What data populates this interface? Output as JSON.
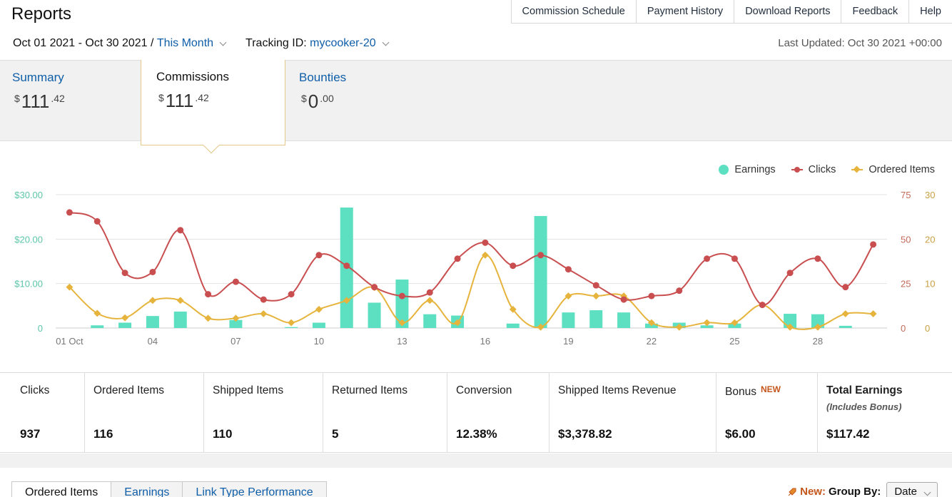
{
  "page": {
    "title": "Reports"
  },
  "topnav": [
    "Commission Schedule",
    "Payment History",
    "Download Reports",
    "Feedback",
    "Help"
  ],
  "filters": {
    "date_range": "Oct 01 2021 - Oct 30 2021",
    "separator": " / ",
    "period": "This Month",
    "tracking_label": "Tracking ID: ",
    "tracking_id": "mycooker-20",
    "last_updated": "Last Updated: Oct 30 2021 +00:00"
  },
  "summary_tiles": [
    {
      "label": "Summary",
      "symbol": "$",
      "whole": "111",
      "cents": ".42",
      "active": false
    },
    {
      "label": "Commissions",
      "symbol": "$",
      "whole": "111",
      "cents": ".42",
      "active": true
    },
    {
      "label": "Bounties",
      "symbol": "$",
      "whole": "0",
      "cents": ".00",
      "active": false
    }
  ],
  "legend": {
    "earnings": "Earnings",
    "clicks": "Clicks",
    "ordered": "Ordered Items"
  },
  "colors": {
    "earnings": "#5ce0c1",
    "clicks": "#c94e50",
    "ordered": "#e6b43c",
    "link": "#0f5ea8",
    "new": "#c4561b"
  },
  "chart_data": {
    "type": "bar",
    "categories": [
      "01 Oct",
      "02",
      "03",
      "04",
      "05",
      "06",
      "07",
      "08",
      "09",
      "10",
      "11",
      "12",
      "13",
      "14",
      "15",
      "16",
      "17",
      "18",
      "19",
      "20",
      "21",
      "22",
      "23",
      "24",
      "25",
      "26",
      "27",
      "28",
      "29",
      "30"
    ],
    "x_tick_labels": [
      "01 Oct",
      "04",
      "07",
      "10",
      "13",
      "16",
      "19",
      "22",
      "25",
      "28"
    ],
    "left_axis": {
      "ticks": [
        "0",
        "$10.00",
        "$20.00",
        "$30.00"
      ],
      "ylim": [
        0,
        30
      ]
    },
    "right_axis_clicks": {
      "ticks": [
        "0",
        "25",
        "50",
        "75"
      ],
      "ylim": [
        0,
        75
      ]
    },
    "right_axis_ordered": {
      "ticks": [
        "0",
        "10",
        "20",
        "30"
      ],
      "ylim": [
        0,
        30
      ]
    },
    "series": [
      {
        "name": "Earnings",
        "type": "bar",
        "axis": "left",
        "values": [
          0,
          0.6,
          1.2,
          2.7,
          3.7,
          0,
          1.8,
          0,
          0.2,
          1.2,
          27.1,
          5.7,
          10.9,
          3.1,
          2.8,
          0,
          1.0,
          25.2,
          3.5,
          4.0,
          3.5,
          1.0,
          1.2,
          0.6,
          1.0,
          0,
          3.2,
          3.1,
          0.5,
          0
        ]
      },
      {
        "name": "Clicks",
        "type": "line",
        "axis": "right_clicks",
        "values": [
          65,
          60,
          31,
          31.5,
          55,
          19,
          26,
          16,
          19,
          41,
          35,
          23,
          18,
          20,
          39,
          48,
          35,
          41,
          33,
          24,
          16,
          18,
          21,
          39,
          39,
          13,
          31,
          39,
          23,
          47
        ]
      },
      {
        "name": "Ordered Items",
        "type": "line",
        "axis": "right_ordered",
        "values": [
          9.2,
          3.3,
          2.3,
          6.2,
          6.2,
          2.2,
          2.2,
          3.2,
          1.2,
          4.2,
          6.2,
          9.1,
          1.2,
          6.2,
          1.2,
          16.4,
          4.2,
          0.2,
          7.2,
          7.2,
          7.2,
          1.2,
          0.2,
          1.2,
          1.2,
          5.2,
          0.2,
          0.2,
          3.2,
          3.2
        ]
      }
    ]
  },
  "stats": [
    {
      "label": "Clicks",
      "value": "937"
    },
    {
      "label": "Ordered Items",
      "value": "116"
    },
    {
      "label": "Shipped Items",
      "value": "110"
    },
    {
      "label": "Returned Items",
      "value": "5"
    },
    {
      "label": "Conversion",
      "value": "12.38%"
    },
    {
      "label": "Shipped Items Revenue",
      "value": "$3,378.82"
    },
    {
      "label": "Bonus",
      "badge": "NEW",
      "value": "$6.00"
    },
    {
      "label": "Total Earnings",
      "sub": "(Includes Bonus)",
      "value": "$117.42"
    }
  ],
  "tabs": [
    "Ordered Items",
    "Earnings",
    "Link Type Performance"
  ],
  "groupby": {
    "new_label": "New:",
    "label": "Group By:",
    "selected": "Date"
  }
}
